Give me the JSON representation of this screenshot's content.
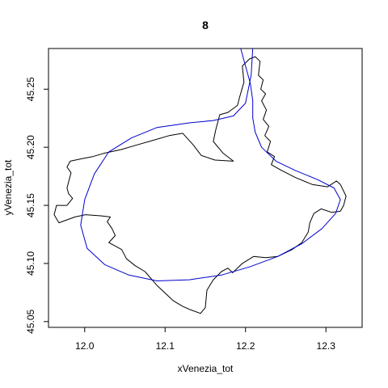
{
  "chart_data": {
    "type": "line",
    "title": "8",
    "xlabel": "xVenezia_tot",
    "ylabel": "yVenezia_tot",
    "xlim": [
      11.955,
      12.345
    ],
    "ylim": [
      45.045,
      45.285
    ],
    "xticks": [
      12.0,
      12.1,
      12.2,
      12.3
    ],
    "yticks": [
      45.05,
      45.1,
      45.15,
      45.2,
      45.25
    ],
    "xtick_labels": [
      "12.0",
      "12.1",
      "12.2",
      "12.3"
    ],
    "ytick_labels": [
      "45.05",
      "45.10",
      "45.15",
      "45.20",
      "45.25"
    ],
    "grid": false,
    "series": [
      {
        "color": "#000000",
        "points": [
          [
            12.205,
            45.276
          ],
          [
            12.212,
            45.278
          ],
          [
            12.218,
            45.274
          ],
          [
            12.216,
            45.262
          ],
          [
            12.222,
            45.258
          ],
          [
            12.219,
            45.25
          ],
          [
            12.225,
            45.246
          ],
          [
            12.22,
            45.24
          ],
          [
            12.226,
            45.232
          ],
          [
            12.222,
            45.224
          ],
          [
            12.229,
            45.218
          ],
          [
            12.224,
            45.21
          ],
          [
            12.231,
            45.205
          ],
          [
            12.227,
            45.196
          ],
          [
            12.236,
            45.192
          ],
          [
            12.232,
            45.185
          ],
          [
            12.245,
            45.18
          ],
          [
            12.262,
            45.174
          ],
          [
            12.283,
            45.168
          ],
          [
            12.302,
            45.166
          ],
          [
            12.313,
            45.171
          ],
          [
            12.318,
            45.168
          ],
          [
            12.325,
            45.158
          ],
          [
            12.322,
            45.15
          ],
          [
            12.318,
            45.145
          ],
          [
            12.307,
            45.144
          ],
          [
            12.294,
            45.147
          ],
          [
            12.285,
            45.143
          ],
          [
            12.28,
            45.135
          ],
          [
            12.278,
            45.127
          ],
          [
            12.27,
            45.118
          ],
          [
            12.258,
            45.112
          ],
          [
            12.24,
            45.106
          ],
          [
            12.225,
            45.105
          ],
          [
            12.21,
            45.106
          ],
          [
            12.196,
            45.1
          ],
          [
            12.184,
            45.092
          ],
          [
            12.178,
            45.096
          ],
          [
            12.17,
            45.093
          ],
          [
            12.16,
            45.086
          ],
          [
            12.152,
            45.077
          ],
          [
            12.15,
            45.062
          ],
          [
            12.144,
            45.057
          ],
          [
            12.132,
            45.06
          ],
          [
            12.122,
            45.063
          ],
          [
            12.11,
            45.068
          ],
          [
            12.09,
            45.081
          ],
          [
            12.075,
            45.093
          ],
          [
            12.063,
            45.098
          ],
          [
            12.052,
            45.104
          ],
          [
            12.046,
            45.112
          ],
          [
            12.03,
            45.118
          ],
          [
            12.038,
            45.124
          ],
          [
            12.034,
            45.13
          ],
          [
            12.028,
            45.136
          ],
          [
            12.032,
            45.14
          ],
          [
            12.02,
            45.141
          ],
          [
            12.001,
            45.142
          ],
          [
            11.988,
            45.14
          ],
          [
            11.968,
            45.135
          ],
          [
            11.962,
            45.142
          ],
          [
            11.965,
            45.15
          ],
          [
            11.978,
            45.15
          ],
          [
            11.985,
            45.156
          ],
          [
            11.98,
            45.16
          ],
          [
            11.978,
            45.165
          ],
          [
            11.983,
            45.178
          ],
          [
            11.978,
            45.183
          ],
          [
            11.982,
            45.188
          ],
          [
            11.995,
            45.19
          ],
          [
            12.01,
            45.192
          ],
          [
            12.025,
            45.195
          ],
          [
            12.045,
            45.198
          ],
          [
            12.065,
            45.202
          ],
          [
            12.085,
            45.206
          ],
          [
            12.105,
            45.21
          ],
          [
            12.122,
            45.212
          ],
          [
            12.135,
            45.202
          ],
          [
            12.145,
            45.193
          ],
          [
            12.162,
            45.189
          ],
          [
            12.185,
            45.188
          ],
          [
            12.172,
            45.195
          ],
          [
            12.16,
            45.205
          ],
          [
            12.163,
            45.215
          ],
          [
            12.168,
            45.228
          ],
          [
            12.178,
            45.23
          ],
          [
            12.19,
            45.236
          ],
          [
            12.193,
            45.244
          ],
          [
            12.198,
            45.256
          ],
          [
            12.196,
            45.27
          ],
          [
            12.205,
            45.276
          ]
        ]
      },
      {
        "color": "#0000CD",
        "points": [
          [
            12.194,
            45.285
          ],
          [
            12.2,
            45.27
          ],
          [
            12.206,
            45.255
          ],
          [
            12.209,
            45.24
          ],
          [
            12.209,
            45.225
          ],
          [
            12.212,
            45.213
          ],
          [
            12.22,
            45.2
          ],
          [
            12.238,
            45.188
          ],
          [
            12.262,
            45.18
          ],
          [
            12.29,
            45.172
          ],
          [
            12.31,
            45.165
          ],
          [
            12.318,
            45.155
          ],
          [
            12.312,
            45.143
          ],
          [
            12.295,
            45.13
          ],
          [
            12.27,
            45.117
          ],
          [
            12.24,
            45.106
          ],
          [
            12.205,
            45.097
          ],
          [
            12.17,
            45.09
          ],
          [
            12.13,
            45.086
          ],
          [
            12.09,
            45.085
          ],
          [
            12.055,
            45.09
          ],
          [
            12.025,
            45.099
          ],
          [
            12.003,
            45.113
          ],
          [
            11.995,
            45.133
          ],
          [
            12.0,
            45.155
          ],
          [
            12.012,
            45.177
          ],
          [
            12.03,
            45.196
          ],
          [
            12.058,
            45.208
          ],
          [
            12.09,
            45.217
          ],
          [
            12.13,
            45.221
          ],
          [
            12.16,
            45.223
          ],
          [
            12.185,
            45.227
          ],
          [
            12.2,
            45.238
          ],
          [
            12.207,
            45.262
          ],
          [
            12.209,
            45.285
          ]
        ]
      }
    ]
  }
}
